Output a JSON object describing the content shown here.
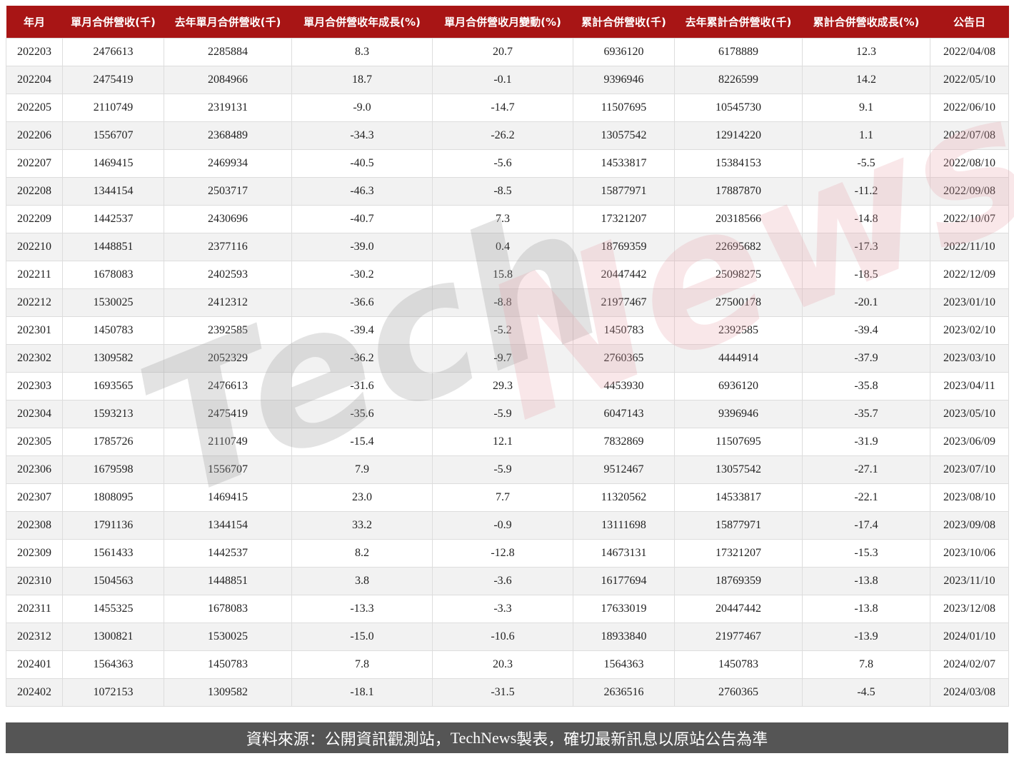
{
  "chart_data": {
    "type": "table",
    "columns": [
      "年月",
      "單月合併營收(千)",
      "去年單月合併營收(千)",
      "單月合併營收年成長(%)",
      "單月合併營收月變動(%)",
      "累計合併營收(千)",
      "去年累計合併營收(千)",
      "累計合併營收成長(%)",
      "公告日"
    ],
    "rows": [
      [
        "202203",
        "2476613",
        "2285884",
        "8.3",
        "20.7",
        "6936120",
        "6178889",
        "12.3",
        "2022/04/08"
      ],
      [
        "202204",
        "2475419",
        "2084966",
        "18.7",
        "-0.1",
        "9396946",
        "8226599",
        "14.2",
        "2022/05/10"
      ],
      [
        "202205",
        "2110749",
        "2319131",
        "-9.0",
        "-14.7",
        "11507695",
        "10545730",
        "9.1",
        "2022/06/10"
      ],
      [
        "202206",
        "1556707",
        "2368489",
        "-34.3",
        "-26.2",
        "13057542",
        "12914220",
        "1.1",
        "2022/07/08"
      ],
      [
        "202207",
        "1469415",
        "2469934",
        "-40.5",
        "-5.6",
        "14533817",
        "15384153",
        "-5.5",
        "2022/08/10"
      ],
      [
        "202208",
        "1344154",
        "2503717",
        "-46.3",
        "-8.5",
        "15877971",
        "17887870",
        "-11.2",
        "2022/09/08"
      ],
      [
        "202209",
        "1442537",
        "2430696",
        "-40.7",
        "7.3",
        "17321207",
        "20318566",
        "-14.8",
        "2022/10/07"
      ],
      [
        "202210",
        "1448851",
        "2377116",
        "-39.0",
        "0.4",
        "18769359",
        "22695682",
        "-17.3",
        "2022/11/10"
      ],
      [
        "202211",
        "1678083",
        "2402593",
        "-30.2",
        "15.8",
        "20447442",
        "25098275",
        "-18.5",
        "2022/12/09"
      ],
      [
        "202212",
        "1530025",
        "2412312",
        "-36.6",
        "-8.8",
        "21977467",
        "27500178",
        "-20.1",
        "2023/01/10"
      ],
      [
        "202301",
        "1450783",
        "2392585",
        "-39.4",
        "-5.2",
        "1450783",
        "2392585",
        "-39.4",
        "2023/02/10"
      ],
      [
        "202302",
        "1309582",
        "2052329",
        "-36.2",
        "-9.7",
        "2760365",
        "4444914",
        "-37.9",
        "2023/03/10"
      ],
      [
        "202303",
        "1693565",
        "2476613",
        "-31.6",
        "29.3",
        "4453930",
        "6936120",
        "-35.8",
        "2023/04/11"
      ],
      [
        "202304",
        "1593213",
        "2475419",
        "-35.6",
        "-5.9",
        "6047143",
        "9396946",
        "-35.7",
        "2023/05/10"
      ],
      [
        "202305",
        "1785726",
        "2110749",
        "-15.4",
        "12.1",
        "7832869",
        "11507695",
        "-31.9",
        "2023/06/09"
      ],
      [
        "202306",
        "1679598",
        "1556707",
        "7.9",
        "-5.9",
        "9512467",
        "13057542",
        "-27.1",
        "2023/07/10"
      ],
      [
        "202307",
        "1808095",
        "1469415",
        "23.0",
        "7.7",
        "11320562",
        "14533817",
        "-22.1",
        "2023/08/10"
      ],
      [
        "202308",
        "1791136",
        "1344154",
        "33.2",
        "-0.9",
        "13111698",
        "15877971",
        "-17.4",
        "2023/09/08"
      ],
      [
        "202309",
        "1561433",
        "1442537",
        "8.2",
        "-12.8",
        "14673131",
        "17321207",
        "-15.3",
        "2023/10/06"
      ],
      [
        "202310",
        "1504563",
        "1448851",
        "3.8",
        "-3.6",
        "16177694",
        "18769359",
        "-13.8",
        "2023/11/10"
      ],
      [
        "202311",
        "1455325",
        "1678083",
        "-13.3",
        "-3.3",
        "17633019",
        "20447442",
        "-13.8",
        "2023/12/08"
      ],
      [
        "202312",
        "1300821",
        "1530025",
        "-15.0",
        "-10.6",
        "18933840",
        "21977467",
        "-13.9",
        "2024/01/10"
      ],
      [
        "202401",
        "1564363",
        "1450783",
        "7.8",
        "20.3",
        "1564363",
        "1450783",
        "7.8",
        "2024/02/07"
      ],
      [
        "202402",
        "1072153",
        "1309582",
        "-18.1",
        "-31.5",
        "2636516",
        "2760365",
        "-4.5",
        "2024/03/08"
      ]
    ]
  },
  "watermark": {
    "part1": "Tech",
    "part2": "News",
    "color1": "#9a9a9a",
    "color2": "#e8a0a8"
  },
  "colors": {
    "header_bg": "#a81515",
    "footer_bg": "#555555",
    "alt_row": "#f2f2f2"
  },
  "footer": {
    "prefix": "資料來源：公開資訊觀測站，",
    "brand": "TechNews",
    "suffix": " 製表，確切最新訊息以原站公告為準"
  }
}
